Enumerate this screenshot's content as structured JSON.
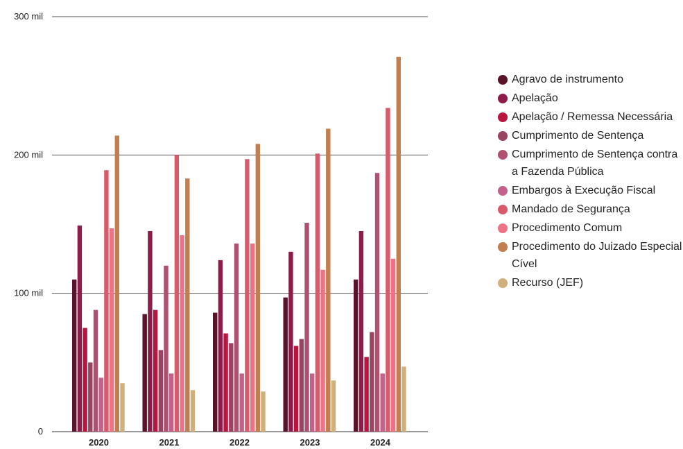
{
  "chart_data": {
    "type": "bar",
    "categories": [
      "2020",
      "2021",
      "2022",
      "2023",
      "2024"
    ],
    "y_ticks": [
      "0",
      "100 mil",
      "200 mil",
      "300 mil"
    ],
    "ylim": [
      0,
      300000
    ],
    "grid": true,
    "legend_position": "right",
    "series": [
      {
        "name": "Agravo de instrumento",
        "color": "#5a1328",
        "values": [
          110000,
          85000,
          86000,
          97000,
          110000
        ]
      },
      {
        "name": "Apelação",
        "color": "#8e1c4a",
        "values": [
          149000,
          145000,
          124000,
          130000,
          145000
        ]
      },
      {
        "name": "Apelação / Remessa Necessária",
        "color": "#b8163f",
        "values": [
          75000,
          88000,
          71000,
          62000,
          54000
        ]
      },
      {
        "name": "Cumprimento de Sentença",
        "color": "#9a4461",
        "values": [
          50000,
          59000,
          64000,
          67000,
          72000
        ]
      },
      {
        "name": "Cumprimento de Sentença contra a Fazenda Pública",
        "color": "#b0506f",
        "values": [
          88000,
          120000,
          136000,
          151000,
          187000
        ]
      },
      {
        "name": "Embargos à Execução Fiscal",
        "color": "#c2628a",
        "values": [
          39000,
          42000,
          42000,
          42000,
          42000
        ]
      },
      {
        "name": "Mandado de Segurança",
        "color": "#d85b6c",
        "values": [
          189000,
          200000,
          197000,
          201000,
          234000
        ]
      },
      {
        "name": "Procedimento Comum",
        "color": "#ec7284",
        "values": [
          147000,
          142000,
          136000,
          117000,
          125000
        ]
      },
      {
        "name": "Procedimento do Juizado Especial Cível",
        "color": "#c27e4e",
        "values": [
          214000,
          183000,
          208000,
          219000,
          271000
        ]
      },
      {
        "name": "Recurso (JEF)",
        "color": "#d0b07a",
        "values": [
          35000,
          30000,
          29000,
          37000,
          47000
        ]
      }
    ]
  }
}
